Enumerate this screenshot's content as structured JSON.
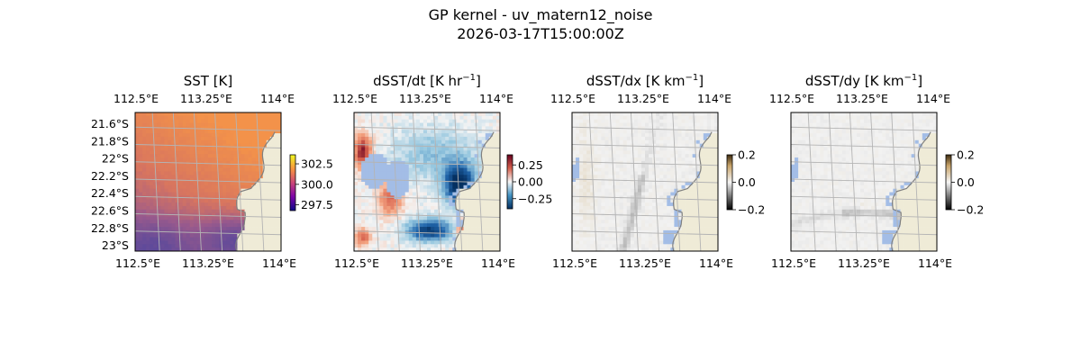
{
  "figure": {
    "title_line1": "GP kernel - uv_matern12_noise",
    "title_line2": "2026-03-17T15:00:00Z"
  },
  "colors": {
    "land": "#efebd7",
    "nodata": "#a3bde6",
    "coast": "#808080",
    "grid": "#b4b4b4"
  },
  "chart_data": [
    {
      "type": "heatmap",
      "title": "SST [K]",
      "colormap": "plasma-muted",
      "colorbar_ticks": [
        "302.5",
        "300.0",
        "297.5"
      ],
      "colorbar_range": [
        296.8,
        303.6
      ],
      "x_ticks_top": [
        "112.5°E",
        "113.25°E",
        "114°E"
      ],
      "x_ticks_bottom": [
        "112.5°E",
        "113.25°E",
        "114°E"
      ],
      "y_ticks": [
        "21.6°S",
        "21.8°S",
        "22°S",
        "22.2°S",
        "22.4°S",
        "22.6°S",
        "22.8°S",
        "23°S"
      ],
      "grid": true
    },
    {
      "type": "heatmap",
      "title": "dSST/dt [K hr",
      "title_exponent": "−1",
      "title_close": "]",
      "colormap": "RdBu_r",
      "colorbar_ticks": [
        "0.25",
        "0.00",
        "−0.25"
      ],
      "colorbar_range": [
        -0.4,
        0.4
      ],
      "x_ticks_top": [
        "112.5°E",
        "113.25°E",
        "114°E"
      ],
      "x_ticks_bottom": [
        "112.5°E",
        "113.25°E",
        "114°E"
      ],
      "grid": true
    },
    {
      "type": "heatmap",
      "title": "dSST/dx [K km",
      "title_exponent": "−1",
      "title_close": "]",
      "colormap": "gray-diverging",
      "colorbar_ticks": [
        "0.2",
        "0.0",
        "−0.2"
      ],
      "colorbar_range": [
        -0.2,
        0.2
      ],
      "x_ticks_top": [
        "112.5°E",
        "113.25°E",
        "114°E"
      ],
      "x_ticks_bottom": [
        "112.5°E",
        "113.25°E",
        "114°E"
      ],
      "grid": true
    },
    {
      "type": "heatmap",
      "title": "dSST/dy [K km",
      "title_exponent": "−1",
      "title_close": "]",
      "colormap": "gray-diverging",
      "colorbar_ticks": [
        "0.2",
        "0.0",
        "−0.2"
      ],
      "colorbar_range": [
        -0.2,
        0.2
      ],
      "x_ticks_top": [
        "112.5°E",
        "113.25°E",
        "114°E"
      ],
      "x_ticks_bottom": [
        "112.5°E",
        "113.25°E",
        "114°E"
      ],
      "grid": true
    }
  ]
}
